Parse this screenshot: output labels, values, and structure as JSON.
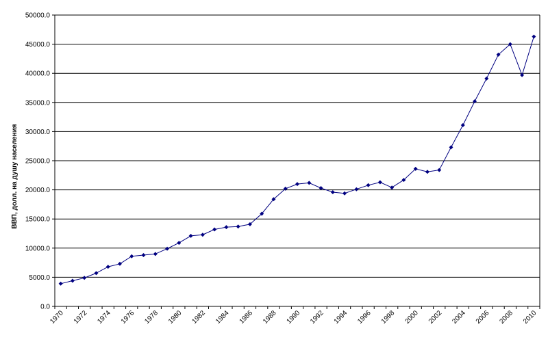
{
  "chart_data": {
    "type": "line",
    "title": "",
    "xlabel": "",
    "ylabel": "ВВП, долл. на душу населения",
    "ylim": [
      0,
      50000
    ],
    "yticks": [
      "0.0",
      "5000.0",
      "10000.0",
      "15000.0",
      "20000.0",
      "25000.0",
      "30000.0",
      "35000.0",
      "40000.0",
      "45000.0",
      "50000.0"
    ],
    "xtick_labels": [
      "1970",
      "1972",
      "1974",
      "1976",
      "1978",
      "1980",
      "1982",
      "1984",
      "1986",
      "1988",
      "1990",
      "1992",
      "1994",
      "1996",
      "1998",
      "2000",
      "2002",
      "2004",
      "2006",
      "2008",
      "2010"
    ],
    "grid": true,
    "legend": "none",
    "x": [
      1970,
      1971,
      1972,
      1973,
      1974,
      1975,
      1976,
      1977,
      1978,
      1979,
      1980,
      1981,
      1982,
      1983,
      1984,
      1985,
      1986,
      1987,
      1988,
      1989,
      1990,
      1991,
      1992,
      1993,
      1994,
      1995,
      1996,
      1997,
      1998,
      1999,
      2000,
      2001,
      2002,
      2003,
      2004,
      2005,
      2006,
      2007,
      2008,
      2009,
      2010
    ],
    "series": [
      {
        "color": "#000080",
        "values": [
          3900,
          4400,
          4900,
          5700,
          6800,
          7300,
          8600,
          8800,
          9000,
          9900,
          10900,
          12100,
          12300,
          13200,
          13600,
          13700,
          14100,
          15900,
          18400,
          20200,
          21000,
          21200,
          20300,
          19600,
          19400,
          20100,
          20800,
          21300,
          20400,
          21700,
          23600,
          23100,
          23400,
          27300,
          31100,
          35200,
          39100,
          43200,
          45000,
          39700,
          46300
        ]
      }
    ]
  }
}
